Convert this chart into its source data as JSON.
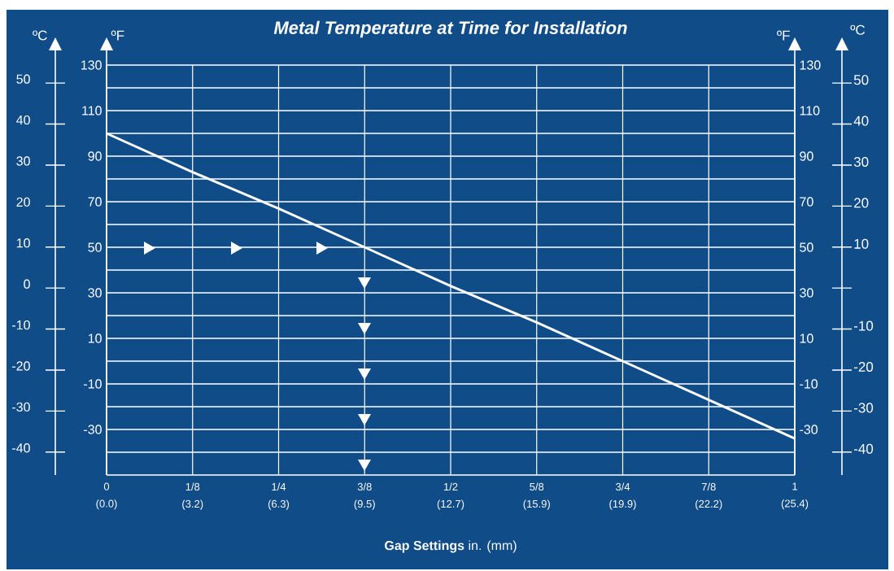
{
  "chart_data": {
    "type": "line",
    "title": "Metal Temperature at Time for Installation",
    "xlabel": "**Gap Settings** in. (mm)",
    "ylabel": "ºF",
    "y2label": "ºF",
    "y3label": "ºC",
    "categories": [
      "0\n(0.0)",
      "1/8\n(3.2)",
      "1/4\n(6.3)",
      "3/8\n(9.5)",
      "1/2\n(12.7)",
      "5/8\n(15.9)",
      "3/4\n(19.9)",
      "7/8\n(22.2)",
      "1\n(25.4)"
    ],
    "ylim": [
      -50,
      130
    ],
    "yticks": [
      {
        "value": -40,
        "label": null
      },
      -30,
      {
        "value": -20,
        "label": null
      },
      -10,
      {
        "value": 0,
        "label": null
      },
      10,
      {
        "value": 20,
        "label": null
      },
      30,
      {
        "value": 40,
        "label": null
      },
      50,
      {
        "value": 60,
        "label": null
      },
      70,
      {
        "value": 80,
        "label": null
      },
      90,
      {
        "value": 100,
        "label": null
      },
      110,
      {
        "value": 120,
        "label": null
      },
      130
    ],
    "y2lim": [
      -50,
      130
    ],
    "y2ticks": [
      {
        "value": -40,
        "label": null
      },
      -30,
      {
        "value": -20,
        "label": null
      },
      -10,
      {
        "value": 0,
        "label": null
      },
      10,
      {
        "value": 20,
        "label": null
      },
      30,
      {
        "value": 40,
        "label": null
      },
      50,
      {
        "value": 60,
        "label": null
      },
      70,
      {
        "value": 80,
        "label": null
      },
      90,
      {
        "value": 100,
        "label": null
      },
      110,
      {
        "value": 120,
        "label": null
      },
      130
    ],
    "y3lim": [
      -45.6,
      54.4
    ],
    "y3ticks": [
      -40,
      -30,
      -20,
      -10,
      0,
      10,
      20,
      30,
      40,
      50
    ],
    "annotations": [
      "ºC",
      "50",
      "40",
      "30",
      "20",
      "10",
      "-10",
      "-20",
      "-30",
      "-40"
    ],
    "grid": true,
    "series": [
      {
        "color": "#ffffff",
        "marker": "none",
        "values": [
          100,
          83,
          67,
          50,
          33,
          17,
          0,
          -17,
          -34
        ]
      }
    ]
  }
}
